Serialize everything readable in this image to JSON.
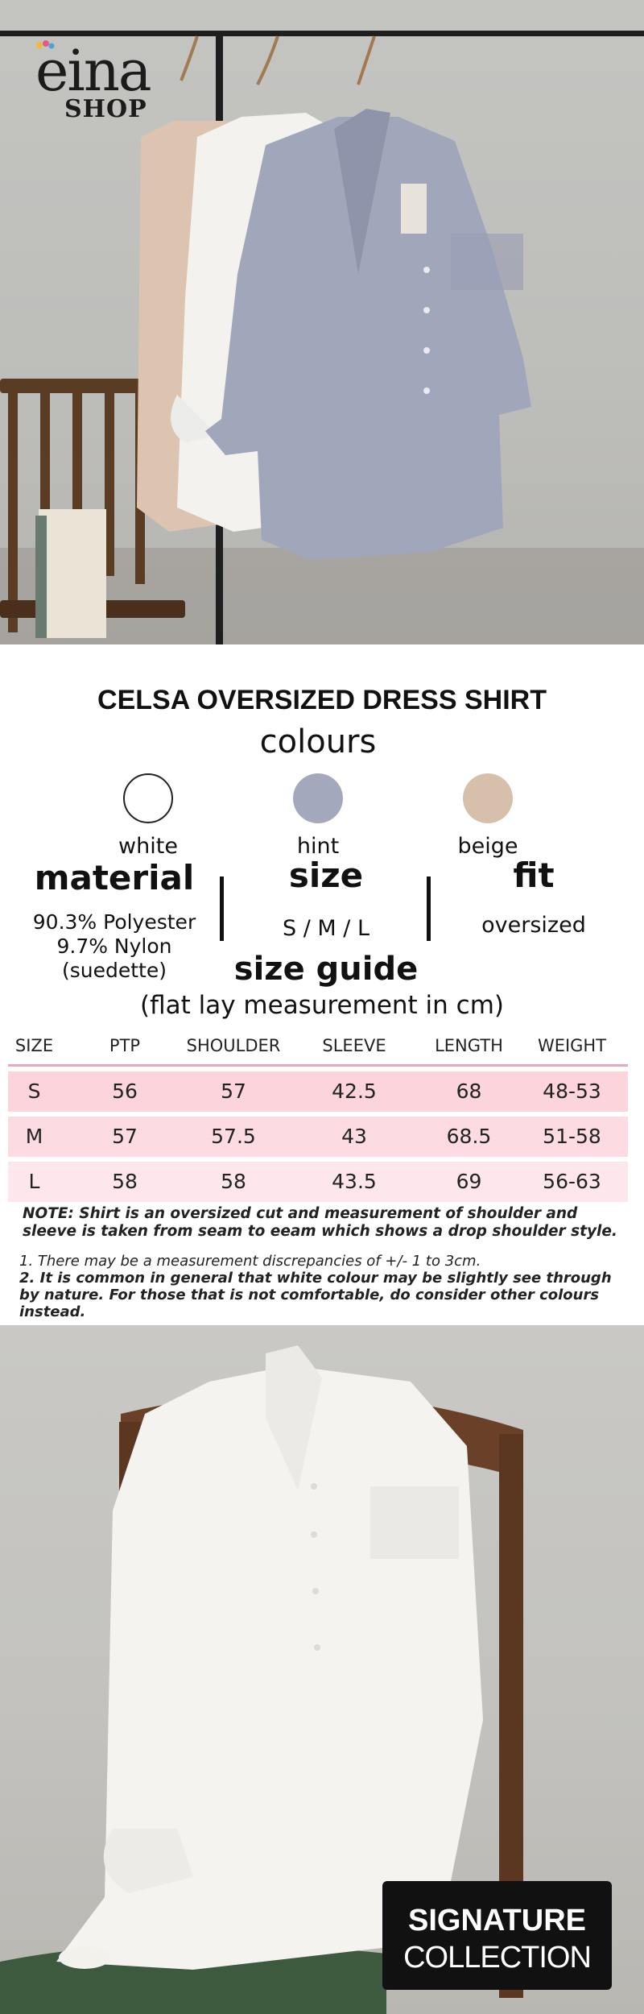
{
  "brand": {
    "logo_word": "eina",
    "logo_sub": "SHOP"
  },
  "product": {
    "title": "CELSA OVERSIZED DRESS SHIRT"
  },
  "colours": {
    "heading": "colours",
    "options": [
      {
        "label": "white",
        "hex": "#ffffff"
      },
      {
        "label": "hint",
        "hex": "#a3a8bd"
      },
      {
        "label": "beige",
        "hex": "#d6c0ac"
      }
    ]
  },
  "specs": {
    "material": {
      "heading": "material",
      "lines": [
        "90.3% Polyester",
        "9.7% Nylon",
        "(suedette)"
      ]
    },
    "size": {
      "heading": "size",
      "value": "S / M / L"
    },
    "fit": {
      "heading": "fit",
      "value": "oversized"
    }
  },
  "size_guide": {
    "heading": "size guide",
    "subheading": "(flat lay measurement in cm)",
    "columns": [
      "SIZE",
      "PTP",
      "SHOULDER",
      "SLEEVE",
      "LENGTH",
      "WEIGHT"
    ],
    "rows": [
      [
        "S",
        "56",
        "57",
        "42.5",
        "68",
        "48-53"
      ],
      [
        "M",
        "57",
        "57.5",
        "43",
        "68.5",
        "51-58"
      ],
      [
        "L",
        "58",
        "58",
        "43.5",
        "69",
        "56-63"
      ]
    ],
    "note": "NOTE: Shirt is an oversized cut and measurement of shoulder and sleeve is taken from seam to eeam which shows a drop shoulder style.",
    "point_1": "1.  There may be a measurement discrepancies of +/- 1 to 3cm.",
    "point_2": "2. It is common in general that white colour may be slightly see through by nature. For those that is not comfortable, do consider other colours instead."
  },
  "badge": {
    "line1": "SIGNATURE",
    "line2": "COLLECTION"
  }
}
